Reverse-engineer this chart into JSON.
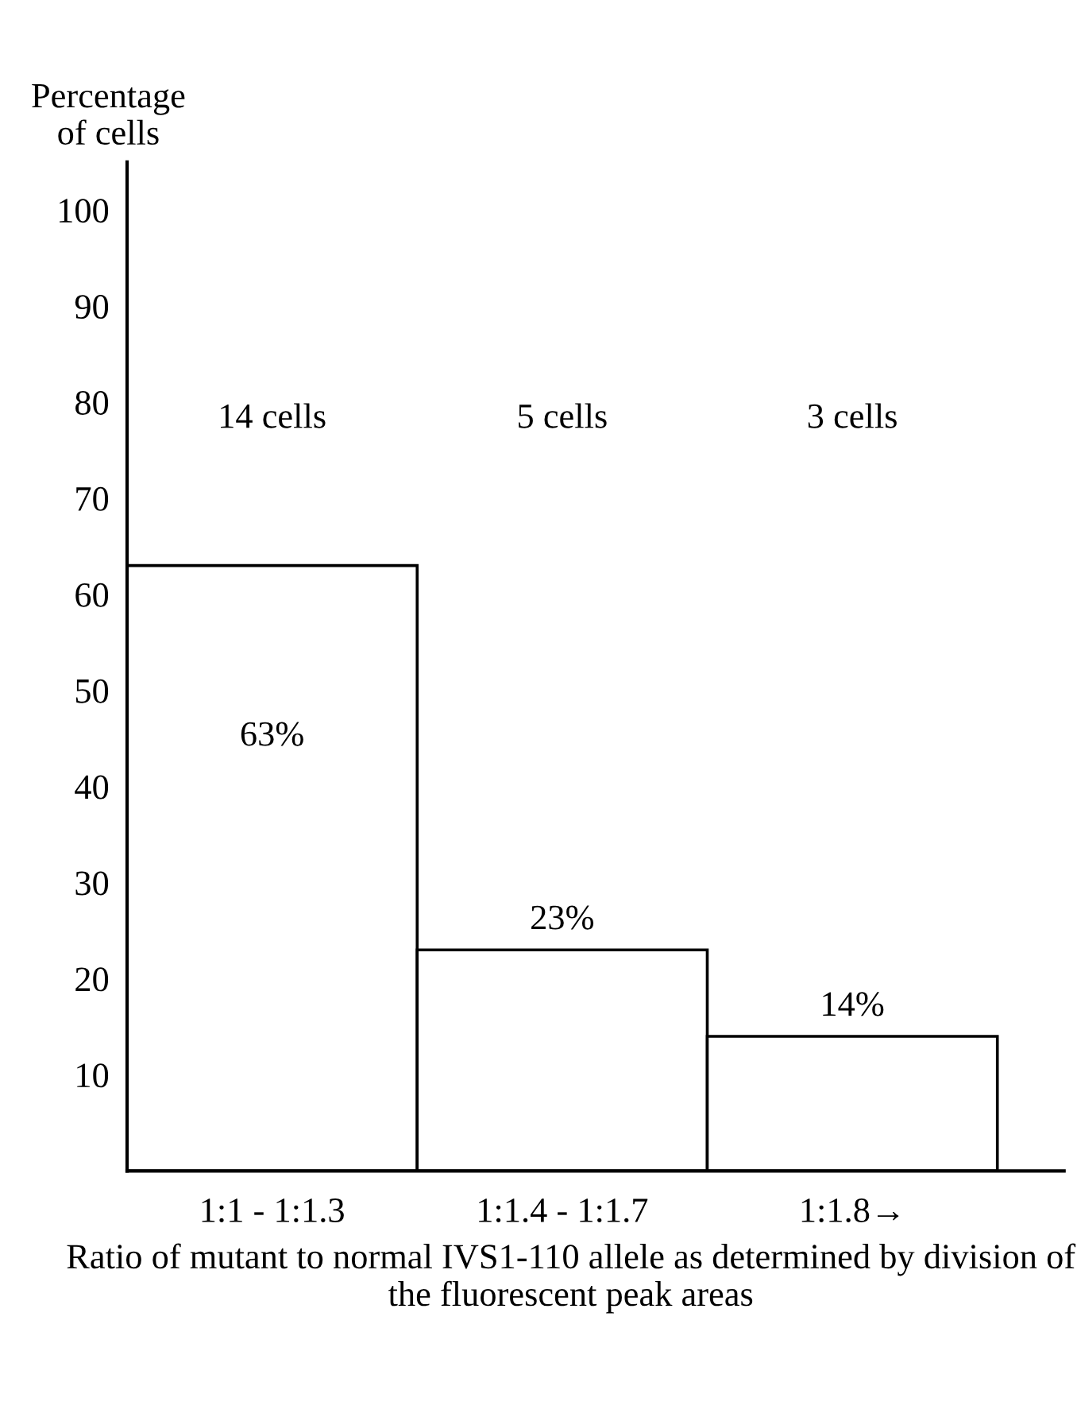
{
  "chart_data": {
    "type": "bar",
    "categories": [
      "1:1 - 1:1.3",
      "1:1.4 - 1:1.7",
      "1:1.8→"
    ],
    "values": [
      63,
      23,
      14
    ],
    "value_labels": [
      "63%",
      "23%",
      "14%"
    ],
    "color": "#ffffff",
    "ylabel": "Percentage of cells",
    "xlabel": "Ratio of mutant to normal IVS1-110 allele as determined by division of the fluorescent peak areas",
    "annotations": [
      "14 cells",
      "5 cells",
      "3 cells"
    ],
    "ylim": [
      0,
      105
    ],
    "yticks": [
      10,
      20,
      30,
      40,
      50,
      60,
      70,
      80,
      90,
      100
    ],
    "grid": false,
    "legend": false
  }
}
